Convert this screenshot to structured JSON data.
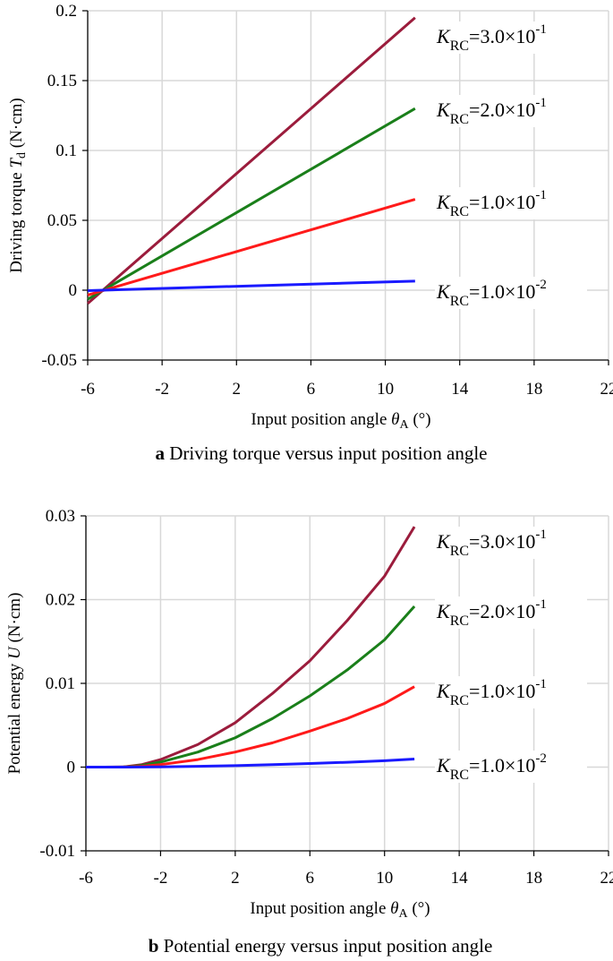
{
  "chart_data": [
    {
      "type": "line",
      "caption_letter": "a",
      "caption_text": "Driving torque versus input position angle",
      "xlabel_main": "Input position angle ",
      "xlabel_symbol": "θ",
      "xlabel_sub": "A",
      "xlabel_unit": " (°)",
      "ylabel_main": "Driving torque ",
      "ylabel_symbol": "T",
      "ylabel_sub": "d",
      "ylabel_unit": " (N·cm)",
      "xlim": [
        -6,
        22
      ],
      "ylim": [
        -0.05,
        0.2
      ],
      "x_ticks": [
        -6,
        -2,
        2,
        6,
        10,
        14,
        18,
        22
      ],
      "x_tick_labels": [
        "-6",
        "-2",
        "2",
        "6",
        "10",
        "14",
        "18",
        "22"
      ],
      "y_ticks": [
        -0.05,
        0,
        0.05,
        0.1,
        0.15,
        0.2
      ],
      "y_tick_labels": [
        "-0.05",
        "0",
        "0.05",
        "0.1",
        "0.15",
        "0.2"
      ],
      "grid": true,
      "series": [
        {
          "label_main": "K",
          "label_sub": "RC",
          "label_value": "=3.0×10",
          "label_exp": "-1",
          "color": "#9b1c3c",
          "x": [
            -6,
            11.6
          ],
          "y": [
            -0.0095,
            0.195
          ]
        },
        {
          "label_main": "K",
          "label_sub": "RC",
          "label_value": "=2.0×10",
          "label_exp": "-1",
          "color": "#1a7f1a",
          "x": [
            -6,
            11.6
          ],
          "y": [
            -0.0065,
            0.13
          ]
        },
        {
          "label_main": "K",
          "label_sub": "RC",
          "label_value": "=1.0×10",
          "label_exp": "-1",
          "color": "#ff1a1a",
          "x": [
            -6,
            11.6
          ],
          "y": [
            -0.0035,
            0.065
          ]
        },
        {
          "label_main": "K",
          "label_sub": "RC",
          "label_value": "=1.0×10",
          "label_exp": "-2",
          "color": "#1a1aff",
          "x": [
            -6,
            11.6
          ],
          "y": [
            -0.0003,
            0.0065
          ]
        }
      ]
    },
    {
      "type": "line",
      "caption_letter": "b",
      "caption_text": "Potential energy versus input position angle",
      "xlabel_main": "Input position angle ",
      "xlabel_symbol": "θ",
      "xlabel_sub": "A",
      "xlabel_unit": " (°)",
      "ylabel_main": "Potential energy ",
      "ylabel_symbol": "U",
      "ylabel_sub": "",
      "ylabel_unit": " (N·cm)",
      "xlim": [
        -6,
        22
      ],
      "ylim": [
        -0.01,
        0.03
      ],
      "x_ticks": [
        -6,
        -2,
        2,
        6,
        10,
        14,
        18,
        22
      ],
      "x_tick_labels": [
        "-6",
        "-2",
        "2",
        "6",
        "10",
        "14",
        "18",
        "22"
      ],
      "y_ticks": [
        -0.01,
        0,
        0.01,
        0.02,
        0.03
      ],
      "y_tick_labels": [
        "-0.01",
        "0",
        "0.01",
        "0.02",
        "0.03"
      ],
      "grid": true,
      "series": [
        {
          "label_main": "K",
          "label_sub": "RC",
          "label_value": "=3.0×10",
          "label_exp": "-1",
          "color": "#9b1c3c",
          "x": [
            -6,
            -5,
            -4,
            -3,
            -2,
            0,
            2,
            4,
            6,
            8,
            10,
            11.6
          ],
          "y": [
            0,
            0,
            2e-05,
            0.0003,
            0.0009,
            0.0027,
            0.0053,
            0.0088,
            0.0127,
            0.0175,
            0.0228,
            0.0287
          ]
        },
        {
          "label_main": "K",
          "label_sub": "RC",
          "label_value": "=2.0×10",
          "label_exp": "-1",
          "color": "#1a7f1a",
          "x": [
            -6,
            -5,
            -4,
            -3,
            -2,
            0,
            2,
            4,
            6,
            8,
            10,
            11.6
          ],
          "y": [
            0,
            0,
            1e-05,
            0.0002,
            0.0006,
            0.0018,
            0.0035,
            0.0058,
            0.0085,
            0.0116,
            0.0152,
            0.0192
          ]
        },
        {
          "label_main": "K",
          "label_sub": "RC",
          "label_value": "=1.0×10",
          "label_exp": "-1",
          "color": "#ff1a1a",
          "x": [
            -6,
            -5,
            -4,
            -3,
            -2,
            0,
            2,
            4,
            6,
            8,
            10,
            11.6
          ],
          "y": [
            0,
            0,
            1e-05,
            0.0001,
            0.0003,
            0.0009,
            0.0018,
            0.0029,
            0.0043,
            0.0058,
            0.0076,
            0.0096
          ]
        },
        {
          "label_main": "K",
          "label_sub": "RC",
          "label_value": "=1.0×10",
          "label_exp": "-2",
          "color": "#1a1aff",
          "x": [
            -6,
            -4,
            -2,
            0,
            2,
            4,
            6,
            8,
            10,
            11.6
          ],
          "y": [
            0,
            0,
            3e-05,
            9e-05,
            0.00018,
            0.00029,
            0.00043,
            0.00058,
            0.00076,
            0.00096
          ]
        }
      ]
    }
  ]
}
